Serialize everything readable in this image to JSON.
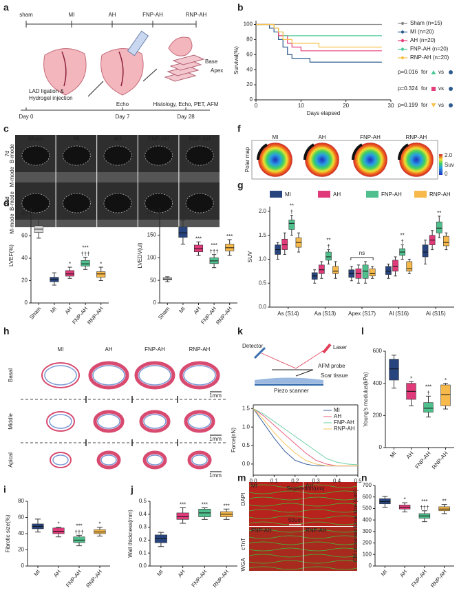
{
  "panel_labels": [
    "a",
    "b",
    "c",
    "d",
    "e",
    "f",
    "g",
    "h",
    "i",
    "j",
    "k",
    "l",
    "m",
    "n"
  ],
  "diagram_a": {
    "groups": [
      "sham",
      "MI",
      "AH",
      "FNP-AH",
      "RNP-AH"
    ],
    "steps": [
      "LAD ligation &",
      "Hydrogel injection",
      "Echo",
      "Histology, Echo, PET, AFM"
    ],
    "days": [
      "Day 0",
      "Day 7",
      "Day 28"
    ],
    "slice_labels": [
      "Base",
      "Apex"
    ]
  },
  "echo_c": {
    "groups": [
      "Sham",
      "MI",
      "AH",
      "FNP-AH",
      "RNP-AH"
    ],
    "times": [
      "7d",
      "28d"
    ],
    "modes": [
      "B-mode",
      "M-mode"
    ]
  },
  "polar_f": {
    "groups": [
      "MI",
      "AH",
      "FNP-AH",
      "RNP-AH"
    ],
    "row_label": "Polar map",
    "scale": {
      "max": "2.0",
      "unit": "Suv",
      "min": "0"
    }
  },
  "histology_h": {
    "groups": [
      "MI",
      "AH",
      "FNP-AH",
      "RNP-AH"
    ],
    "levels": [
      "Basal",
      "Middle",
      "Apical"
    ],
    "scale_bar": "1mm"
  },
  "afm_k": {
    "labels": [
      "Detector",
      "Laser",
      "AFM probe",
      "Scar tissue",
      "Piezo scanner"
    ]
  },
  "if_m": {
    "groups": [
      "MI",
      "AH",
      "FNP-AH",
      "RNP-AH"
    ],
    "stains": [
      "DAPI",
      "cTnT",
      "WGA"
    ],
    "scale_bar": "50um"
  },
  "chart_data": [
    {
      "type": "step",
      "xlabel": "Days elapsed",
      "ylabel": "Survival(%)",
      "x": [
        0,
        3,
        4,
        5,
        6,
        7,
        8,
        10,
        12,
        14,
        28
      ],
      "series": [
        {
          "name": "Sham (n=15)",
          "color": "#888888",
          "values": [
            100,
            100,
            100,
            100,
            100,
            100,
            100,
            100,
            100,
            100,
            100
          ]
        },
        {
          "name": "MI (n=20)",
          "color": "#2d5b8e",
          "values": [
            100,
            95,
            90,
            80,
            70,
            60,
            55,
            55,
            50,
            50,
            50
          ]
        },
        {
          "name": "AH (n=20)",
          "color": "#e63c7a",
          "values": [
            100,
            100,
            95,
            85,
            85,
            75,
            70,
            65,
            65,
            65,
            65
          ]
        },
        {
          "name": "FNP-AH (n=20)",
          "color": "#4ec99a",
          "values": [
            100,
            100,
            95,
            90,
            85,
            85,
            85,
            85,
            85,
            85,
            85
          ]
        },
        {
          "name": "RNP-AH (n=20)",
          "color": "#f7c04a",
          "values": [
            100,
            100,
            95,
            90,
            80,
            80,
            75,
            75,
            75,
            70,
            70
          ]
        }
      ],
      "xlim": [
        0,
        30
      ],
      "xticks": [
        0,
        10,
        20,
        30
      ],
      "ylim": [
        0,
        105
      ],
      "yticks": [
        0,
        20,
        40,
        60,
        80,
        100
      ],
      "annotations": [
        "p=0.016",
        "p=0.324",
        "p=0.199"
      ],
      "annotation_words": [
        "for",
        "vs"
      ]
    },
    {
      "type": "box",
      "ylabel": "LVEF(%)",
      "categories": [
        "Sham",
        "MI",
        "AH",
        "FNP-AH",
        "RNP-AH"
      ],
      "colors": [
        "#d9d9d9",
        "#27447e",
        "#e03a7a",
        "#4fc08d",
        "#f6b94a"
      ],
      "min": [
        58,
        16,
        22,
        30,
        20
      ],
      "q1": [
        63,
        19,
        24,
        33,
        23
      ],
      "median": [
        66,
        21,
        26,
        35,
        26
      ],
      "q3": [
        69,
        23,
        29,
        38,
        28
      ],
      "max": [
        75,
        27,
        32,
        41,
        32
      ],
      "sig": [
        null,
        null,
        "*",
        "***",
        "*"
      ],
      "dagger": [
        null,
        null,
        null,
        "†††",
        null
      ],
      "ylim": [
        0,
        85
      ],
      "yticks": [
        0,
        20,
        40,
        60,
        80
      ]
    },
    {
      "type": "box",
      "ylabel": "LVEDV(ul)",
      "categories": [
        "Sham",
        "MI",
        "AH",
        "FNP-AH",
        "RNP-AH"
      ],
      "colors": [
        "#d9d9d9",
        "#27447e",
        "#e03a7a",
        "#4fc08d",
        "#f6b94a"
      ],
      "min": [
        47,
        130,
        105,
        78,
        105
      ],
      "q1": [
        51,
        145,
        113,
        87,
        115
      ],
      "median": [
        53,
        155,
        120,
        93,
        122
      ],
      "q3": [
        56,
        168,
        128,
        100,
        130
      ],
      "max": [
        58,
        182,
        135,
        107,
        140
      ],
      "sig": [
        null,
        null,
        "***",
        "***",
        "***"
      ],
      "dagger": [
        null,
        null,
        null,
        "†††",
        null
      ],
      "ylim": [
        0,
        210
      ],
      "yticks": [
        0,
        50,
        100,
        150,
        200
      ]
    },
    {
      "type": "grouped_box",
      "ylabel": "SUV",
      "categories": [
        "As (S14)",
        "Aa (S13)",
        "Apex (S17)",
        "Al (S16)",
        "Ai (S15)"
      ],
      "series": [
        {
          "name": "MI",
          "color": "#27447e",
          "min": [
            1.0,
            0.5,
            0.55,
            0.6,
            0.9
          ],
          "q1": [
            1.1,
            0.58,
            0.62,
            0.68,
            1.05
          ],
          "median": [
            1.2,
            0.65,
            0.7,
            0.75,
            1.15
          ],
          "q3": [
            1.3,
            0.72,
            0.78,
            0.85,
            1.3
          ],
          "max": [
            1.35,
            0.78,
            0.85,
            0.9,
            1.4
          ]
        },
        {
          "name": "AH",
          "color": "#e03a7a",
          "min": [
            1.1,
            0.6,
            0.5,
            0.65,
            1.2
          ],
          "q1": [
            1.2,
            0.7,
            0.6,
            0.75,
            1.3
          ],
          "median": [
            1.3,
            0.78,
            0.7,
            0.85,
            1.4
          ],
          "q3": [
            1.42,
            0.88,
            0.8,
            0.98,
            1.5
          ],
          "max": [
            1.55,
            0.95,
            0.88,
            1.05,
            1.6
          ]
        },
        {
          "name": "FNP-AH",
          "color": "#4fc08d",
          "min": [
            1.5,
            0.9,
            0.5,
            1.0,
            1.45
          ],
          "q1": [
            1.62,
            0.98,
            0.6,
            1.08,
            1.55
          ],
          "median": [
            1.75,
            1.05,
            0.75,
            1.15,
            1.65
          ],
          "q3": [
            1.82,
            1.15,
            0.88,
            1.22,
            1.78
          ],
          "max": [
            1.92,
            1.2,
            0.95,
            1.3,
            1.9
          ]
        },
        {
          "name": "RNP-AH",
          "color": "#f6b94a",
          "min": [
            1.15,
            0.6,
            0.6,
            0.7,
            1.2
          ],
          "q1": [
            1.25,
            0.7,
            0.65,
            0.75,
            1.28
          ],
          "median": [
            1.35,
            0.75,
            0.7,
            0.8,
            1.35
          ],
          "q3": [
            1.45,
            0.85,
            0.8,
            0.95,
            1.48
          ],
          "max": [
            1.55,
            0.95,
            0.85,
            1.0,
            1.55
          ]
        }
      ],
      "sig": [
        "**",
        "**",
        null,
        "**",
        "**"
      ],
      "dagger": [
        "†",
        "†",
        null,
        "†",
        null
      ],
      "bracket_label": "ns",
      "ylim": [
        0,
        2.1
      ],
      "yticks": [
        {
          "value": 0,
          "label": "0.0"
        },
        0.5,
        {
          "value": 1,
          "label": "1.0"
        },
        1.5,
        {
          "value": 2,
          "label": "2.0"
        }
      ]
    },
    {
      "type": "box",
      "ylabel": "Fibrotic size(%)",
      "categories": [
        "MI",
        "AH",
        "FNP-AH",
        "RNP-AH"
      ],
      "colors": [
        "#27447e",
        "#e03a7a",
        "#4fc08d",
        "#f6b94a"
      ],
      "min": [
        42,
        36,
        25,
        37
      ],
      "q1": [
        46,
        40,
        29,
        40
      ],
      "median": [
        49,
        43,
        32,
        42
      ],
      "q3": [
        52,
        47,
        36,
        45
      ],
      "max": [
        58,
        48,
        38,
        48
      ],
      "sig": [
        null,
        "*",
        "***",
        "*"
      ],
      "dagger": [
        null,
        null,
        "†††",
        null
      ],
      "ylim": [
        0,
        80
      ],
      "yticks": [
        0,
        20,
        40,
        60,
        80
      ]
    },
    {
      "type": "box",
      "ylabel": "Wall thickness(mm)",
      "categories": [
        "MI",
        "AH",
        "FNP-AH",
        "RNP-AH"
      ],
      "colors": [
        "#27447e",
        "#e03a7a",
        "#4fc08d",
        "#f6b94a"
      ],
      "min": [
        0.15,
        0.33,
        0.36,
        0.36
      ],
      "q1": [
        0.18,
        0.36,
        0.38,
        0.38
      ],
      "median": [
        0.21,
        0.38,
        0.41,
        0.4
      ],
      "q3": [
        0.24,
        0.41,
        0.44,
        0.42
      ],
      "max": [
        0.26,
        0.45,
        0.45,
        0.44
      ],
      "sig": [
        null,
        "***",
        "***",
        "***"
      ],
      "dagger": [
        null,
        null,
        null,
        null
      ],
      "ylim": [
        0,
        0.5
      ],
      "yticks": [
        {
          "value": 0,
          "label": "0.0"
        },
        0.1,
        0.2,
        0.3,
        0.4,
        0.5
      ]
    },
    {
      "type": "line",
      "xlabel": "Seperation(um)",
      "ylabel": "Force(nN)",
      "x": [
        0,
        0.05,
        0.1,
        0.15,
        0.2,
        0.25,
        0.3,
        0.35,
        0.4,
        0.45,
        0.5
      ],
      "series": [
        {
          "name": "MI",
          "color": "#3b5fa0",
          "values": [
            1.5,
            1.1,
            0.7,
            0.35,
            0.1,
            0,
            -0.05,
            -0.05,
            -0.05,
            -0.05,
            -0.05
          ]
        },
        {
          "name": "AH",
          "color": "#e8607f",
          "values": [
            1.5,
            1.3,
            1.05,
            0.8,
            0.55,
            0.3,
            0.1,
            0,
            -0.05,
            -0.05,
            -0.05
          ]
        },
        {
          "name": "FNP-AH",
          "color": "#6fd0a8",
          "values": [
            1.5,
            1.35,
            1.15,
            0.95,
            0.75,
            0.55,
            0.35,
            0.15,
            0.05,
            0,
            -0.02
          ]
        },
        {
          "name": "RNP-AH",
          "color": "#f7c45c",
          "values": [
            1.5,
            1.2,
            0.85,
            0.55,
            0.3,
            0.1,
            0,
            -0.05,
            -0.05,
            -0.05,
            -0.05
          ]
        }
      ],
      "xlim": [
        0,
        0.5
      ],
      "xticks": [
        {
          "value": 0,
          "label": "0.0"
        },
        0.1,
        0.2,
        0.3,
        0.4,
        0.5
      ],
      "ylim": [
        -0.3,
        1.6
      ],
      "yticks": [
        {
          "value": 0,
          "label": "0.0"
        },
        0.5,
        {
          "value": 1,
          "label": "1.0"
        },
        1.5
      ]
    },
    {
      "type": "box",
      "ylabel": "Young's modulus(kPa)",
      "categories": [
        "MI",
        "AH",
        "FNP-AH",
        "RNP-AH"
      ],
      "colors": [
        "#27447e",
        "#e03a7a",
        "#4fc08d",
        "#f6b94a"
      ],
      "min": [
        370,
        260,
        190,
        240
      ],
      "q1": [
        420,
        300,
        220,
        260
      ],
      "median": [
        490,
        350,
        245,
        330
      ],
      "q3": [
        550,
        400,
        280,
        390
      ],
      "max": [
        575,
        410,
        320,
        400
      ],
      "sig": [
        null,
        "*",
        "***",
        "*"
      ],
      "dagger": [
        null,
        null,
        "†",
        null
      ],
      "ylim": [
        0,
        600
      ],
      "yticks": [
        0,
        200,
        400,
        600
      ]
    },
    {
      "type": "box",
      "ylabel": "CM cross-sectional size (um²)",
      "categories": [
        "MI",
        "AH",
        "FNP-AH",
        "RNP-AH"
      ],
      "colors": [
        "#27447e",
        "#e03a7a",
        "#4fc08d",
        "#f6b94a"
      ],
      "min": [
        510,
        470,
        385,
        455
      ],
      "q1": [
        540,
        495,
        415,
        480
      ],
      "median": [
        560,
        510,
        435,
        495
      ],
      "q3": [
        585,
        530,
        455,
        515
      ],
      "max": [
        605,
        550,
        480,
        535
      ],
      "sig": [
        null,
        "*",
        "***",
        "**"
      ],
      "dagger": [
        null,
        null,
        "†††",
        null
      ],
      "ylim": [
        0,
        700
      ],
      "yticks": [
        0,
        100,
        200,
        300,
        400,
        500,
        600,
        700
      ]
    }
  ]
}
